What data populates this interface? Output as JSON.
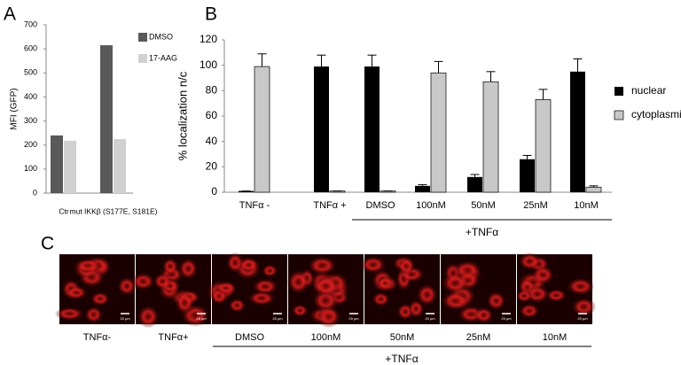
{
  "panels": {
    "a": "A",
    "b": "B",
    "c": "C"
  },
  "chart_data": [
    {
      "type": "bar",
      "ylabel": "MFI (GFP)",
      "categories": [
        "Ctr",
        "mut IKKβ (S177E, S181E)"
      ],
      "series": [
        {
          "name": "DMSO",
          "color": "#595959",
          "values": [
            240,
            615
          ]
        },
        {
          "name": "17-AAG",
          "color": "#d0d0d0",
          "values": [
            218,
            225
          ]
        }
      ],
      "ylim": [
        0,
        700
      ],
      "yticks": [
        0,
        100,
        200,
        300,
        400,
        500,
        600,
        700
      ],
      "legend": "right"
    },
    {
      "type": "bar",
      "ylabel": "% localization n/c",
      "categories": [
        "TNFα -",
        "TNFα +",
        "DMSO",
        "100nM",
        "50nM",
        "25nM",
        "10nM"
      ],
      "series": [
        {
          "name": "nuclear",
          "color": "#000000",
          "values": [
            1,
            99,
            99,
            5,
            12,
            26,
            95
          ],
          "errors": [
            0,
            9,
            9,
            1,
            2,
            3,
            10
          ]
        },
        {
          "name": "cytoplasmic",
          "color": "#c8c8c8",
          "values": [
            99,
            1,
            1,
            94,
            87,
            73,
            4
          ],
          "errors": [
            10,
            0,
            0,
            9,
            8,
            8,
            1
          ]
        }
      ],
      "ylim": [
        0,
        120
      ],
      "yticks": [
        0,
        20,
        40,
        60,
        80,
        100,
        120
      ],
      "legend": "right",
      "annotation": "+TNFα"
    }
  ],
  "images": {
    "labels": [
      "TNFα-",
      "TNFα+",
      "DMSO",
      "100nM",
      "50nM",
      "25nM",
      "10nM"
    ],
    "scale_bar": "25 µm",
    "annotation": "+TNFα"
  }
}
